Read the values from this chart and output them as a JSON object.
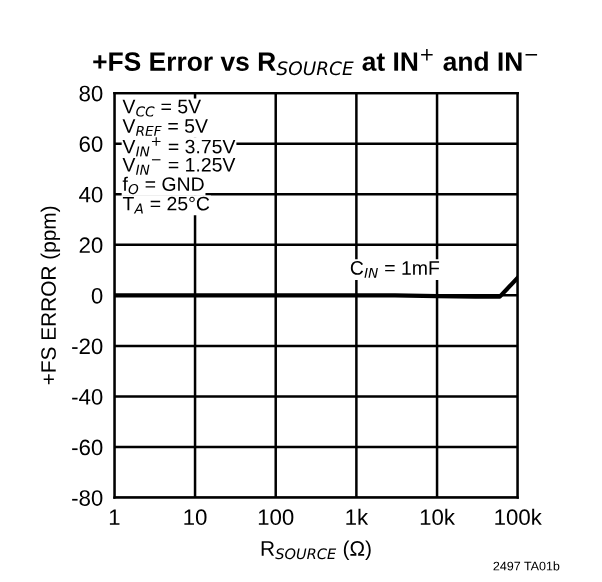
{
  "chart_data": {
    "type": "line",
    "title": "+FS Error vs R$_{SOURCE}$ at IN$^{+}$ and IN$^{−}$",
    "xlabel": "R$_{SOURCE}$ (Ω)",
    "ylabel": "+FS ERROR (ppm)",
    "x": [
      1,
      10,
      100,
      1000,
      3000,
      10000,
      30000,
      60000,
      100000
    ],
    "series": [
      {
        "color": "#000000",
        "values": [
          0,
          0,
          0,
          0,
          0,
          -0.3,
          -0.5,
          -0.5,
          7
        ]
      }
    ],
    "log": "x",
    "xlim": [
      1,
      100000
    ],
    "xticks": [
      1,
      10,
      100,
      {
        "value": 1000,
        "label": "1k"
      },
      {
        "value": 10000,
        "label": "10k"
      },
      {
        "value": 100000,
        "label": "100k"
      }
    ],
    "ylim": [
      -80,
      80
    ],
    "yticks": [
      -80,
      -60,
      -40,
      -20,
      0,
      20,
      40,
      60,
      80
    ],
    "grid": true,
    "legend": false,
    "marker": "none",
    "line_style": "solid",
    "annotations": [
      "V$_{CC}$ = 5V",
      "V$_{REF}$ = 5V",
      "V$_{IN}$$^{+}$ = 3.75V",
      "V$_{IN}$$^{−}$ = 1.25V",
      "f$_{O}$ = GND",
      "T$_{A}$ = 25°C",
      {
        "text": "C$_{IN}$ = 1mF",
        "x": 3000,
        "y": 0
      },
      "2497 TA01b"
    ]
  }
}
